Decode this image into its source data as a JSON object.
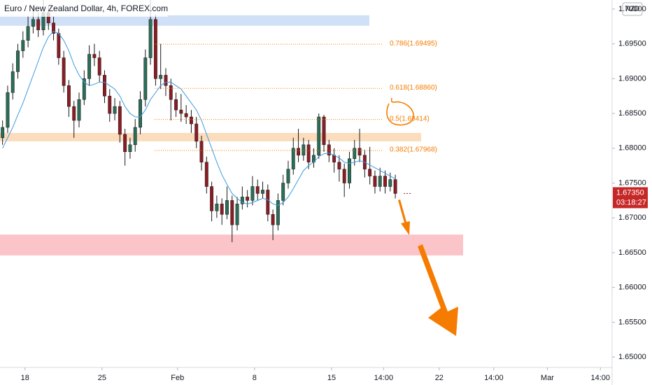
{
  "chart_data": {
    "type": "candlestick",
    "title": "Euro / New Zealand Dollar, 4h, FOREX.com",
    "currency": "NZD",
    "xlim": [
      -0.5,
      119.5
    ],
    "xticks": [
      {
        "value": 4.4,
        "label": "18"
      },
      {
        "value": 19.5,
        "label": "25"
      },
      {
        "value": 34.3,
        "label": "Feb"
      },
      {
        "value": 49.4,
        "label": "8"
      },
      {
        "value": 64.5,
        "label": "15"
      },
      {
        "value": 74.7,
        "label": "14:00"
      },
      {
        "value": 85.6,
        "label": "22"
      },
      {
        "value": 96.3,
        "label": "14:00"
      },
      {
        "value": 106.8,
        "label": "Mar"
      },
      {
        "value": 117.2,
        "label": "14:00"
      }
    ],
    "ylim": [
      1.6485,
      1.7013
    ],
    "yticks": [
      {
        "value": 1.65,
        "label": "1.65000"
      },
      {
        "value": 1.655,
        "label": "1.65500"
      },
      {
        "value": 1.66,
        "label": "1.66000"
      },
      {
        "value": 1.665,
        "label": "1.66500"
      },
      {
        "value": 1.67,
        "label": "1.67000"
      },
      {
        "value": 1.675,
        "label": "1.67500"
      },
      {
        "value": 1.68,
        "label": "1.68000"
      },
      {
        "value": 1.685,
        "label": "1.68500"
      },
      {
        "value": 1.69,
        "label": "1.69000"
      },
      {
        "value": 1.695,
        "label": "1.69500"
      },
      {
        "value": 1.7,
        "label": "1.70000"
      }
    ],
    "up_color": "#2a6e58",
    "down_color": "#8c1c24",
    "ma_color": "#3c9be0",
    "open": [
      1.6815,
      1.683,
      1.688,
      1.691,
      1.694,
      1.6955,
      1.6975,
      1.6985,
      1.697,
      1.6995,
      1.698,
      1.6965,
      1.693,
      1.689,
      1.686,
      1.684,
      1.687,
      1.69,
      1.6935,
      1.693,
      1.6905,
      1.6875,
      1.685,
      1.686,
      1.682,
      1.6795,
      1.6805,
      1.683,
      1.687,
      1.693,
      1.6985,
      1.69,
      1.6905,
      1.689,
      1.687,
      1.6855,
      1.685,
      1.6845,
      1.6835,
      1.681,
      1.678,
      1.6745,
      1.671,
      1.672,
      1.6705,
      1.6725,
      1.669,
      1.672,
      1.673,
      1.6725,
      1.6745,
      1.6735,
      1.674,
      1.6705,
      1.669,
      1.6725,
      1.675,
      1.677,
      1.68,
      1.679,
      1.6805,
      1.678,
      1.679,
      1.6845,
      1.6805,
      1.679,
      1.678,
      1.677,
      1.675,
      1.6785,
      1.68,
      1.679,
      1.677,
      1.676,
      1.6745,
      1.676,
      1.6745,
      1.6755
    ],
    "high": [
      1.684,
      1.689,
      1.6922,
      1.695,
      1.6968,
      1.699,
      1.7005,
      1.6995,
      1.7013,
      1.7005,
      1.699,
      1.6972,
      1.694,
      1.6898,
      1.6868,
      1.688,
      1.6912,
      1.6948,
      1.695,
      1.694,
      1.6912,
      1.6885,
      1.6872,
      1.6868,
      1.6828,
      1.6815,
      1.6842,
      1.6882,
      1.6942,
      1.7013,
      1.6992,
      1.695,
      1.6915,
      1.69,
      1.688,
      1.6878,
      1.6862,
      1.6855,
      1.6845,
      1.6818,
      1.6788,
      1.6752,
      1.6732,
      1.6728,
      1.6745,
      1.6732,
      1.673,
      1.6745,
      1.674,
      1.676,
      1.6755,
      1.6752,
      1.6748,
      1.6712,
      1.6735,
      1.6762,
      1.6782,
      1.6815,
      1.6828,
      1.6815,
      1.6812,
      1.68,
      1.685,
      1.6848,
      1.6812,
      1.68,
      1.679,
      1.6778,
      1.6795,
      1.6812,
      1.6828,
      1.6798,
      1.6802,
      1.6768,
      1.6772,
      1.6768,
      1.6765,
      1.6762
    ],
    "low": [
      1.6805,
      1.6822,
      1.687,
      1.69,
      1.693,
      1.6945,
      1.6965,
      1.696,
      1.6962,
      1.697,
      1.6955,
      1.692,
      1.688,
      1.6845,
      1.6815,
      1.683,
      1.6862,
      1.689,
      1.6918,
      1.6895,
      1.6865,
      1.6838,
      1.684,
      1.6808,
      1.6775,
      1.6785,
      1.6795,
      1.682,
      1.686,
      1.692,
      1.689,
      1.6885,
      1.6875,
      1.684,
      1.6845,
      1.6838,
      1.6835,
      1.6822,
      1.68,
      1.6768,
      1.6735,
      1.6695,
      1.67,
      1.669,
      1.6698,
      1.6665,
      1.6682,
      1.6712,
      1.6715,
      1.6718,
      1.6725,
      1.6728,
      1.6695,
      1.6668,
      1.6682,
      1.6718,
      1.6742,
      1.6762,
      1.678,
      1.6782,
      1.677,
      1.6772,
      1.6785,
      1.6795,
      1.678,
      1.6765,
      1.6752,
      1.673,
      1.6742,
      1.6775,
      1.678,
      1.6758,
      1.6748,
      1.6735,
      1.6738,
      1.6735,
      1.6738,
      1.6728
    ],
    "close": [
      1.683,
      1.688,
      1.691,
      1.694,
      1.6955,
      1.6975,
      1.6985,
      1.697,
      1.6995,
      1.698,
      1.6965,
      1.693,
      1.689,
      1.686,
      1.684,
      1.687,
      1.69,
      1.6935,
      1.693,
      1.6905,
      1.6875,
      1.685,
      1.686,
      1.682,
      1.6795,
      1.6805,
      1.683,
      1.687,
      1.693,
      1.6985,
      1.69,
      1.6905,
      1.689,
      1.687,
      1.6855,
      1.685,
      1.6845,
      1.6835,
      1.681,
      1.678,
      1.6745,
      1.671,
      1.672,
      1.6705,
      1.6725,
      1.669,
      1.672,
      1.673,
      1.6725,
      1.6745,
      1.6735,
      1.674,
      1.6705,
      1.669,
      1.6725,
      1.675,
      1.677,
      1.68,
      1.679,
      1.6805,
      1.678,
      1.679,
      1.6845,
      1.6805,
      1.679,
      1.678,
      1.677,
      1.675,
      1.6785,
      1.68,
      1.679,
      1.677,
      1.676,
      1.6745,
      1.676,
      1.6745,
      1.6755,
      1.6735
    ],
    "ma": [
      1.68,
      1.6815,
      1.683,
      1.6848,
      1.6865,
      1.6885,
      1.6905,
      1.6925,
      1.6945,
      1.696,
      1.6968,
      1.6965,
      1.6955,
      1.694,
      1.692,
      1.6905,
      1.6895,
      1.689,
      1.6892,
      1.6895,
      1.6895,
      1.689,
      1.6885,
      1.6875,
      1.686,
      1.685,
      1.6845,
      1.6845,
      1.6855,
      1.687,
      1.688,
      1.689,
      1.6895,
      1.6895,
      1.689,
      1.6885,
      1.6875,
      1.6865,
      1.6855,
      1.684,
      1.682,
      1.68,
      1.678,
      1.6762,
      1.6748,
      1.6735,
      1.6728,
      1.6722,
      1.672,
      1.6722,
      1.6725,
      1.6728,
      1.6726,
      1.672,
      1.6718,
      1.6722,
      1.673,
      1.6742,
      1.6755,
      1.6768,
      1.6775,
      1.678,
      1.6788,
      1.6792,
      1.6793,
      1.679,
      1.6786,
      1.678,
      1.6778,
      1.678,
      1.6782,
      1.678,
      1.6776,
      1.6772,
      1.6768,
      1.6764,
      1.676,
      1.6756
    ],
    "zones": [
      {
        "low": 1.6976,
        "high": 1.6991,
        "color": "#cfe0f7"
      },
      {
        "low": 1.681,
        "high": 1.6822,
        "color": "#fbdcbc"
      },
      {
        "low": 1.6646,
        "high": 1.6676,
        "color": "#fbc4c8"
      }
    ],
    "fib_levels": [
      {
        "value": 1.69495,
        "label": "0.786(1.69495)"
      },
      {
        "value": 1.6886,
        "label": "0.618(1.68860)"
      },
      {
        "value": 1.68414,
        "label": "0.5(1.68414)"
      },
      {
        "value": 1.67968,
        "label": "0.382(1.67968)"
      }
    ],
    "last_price": {
      "value": 1.6735,
      "label": "1.67350"
    },
    "countdown": "03:18:27"
  }
}
